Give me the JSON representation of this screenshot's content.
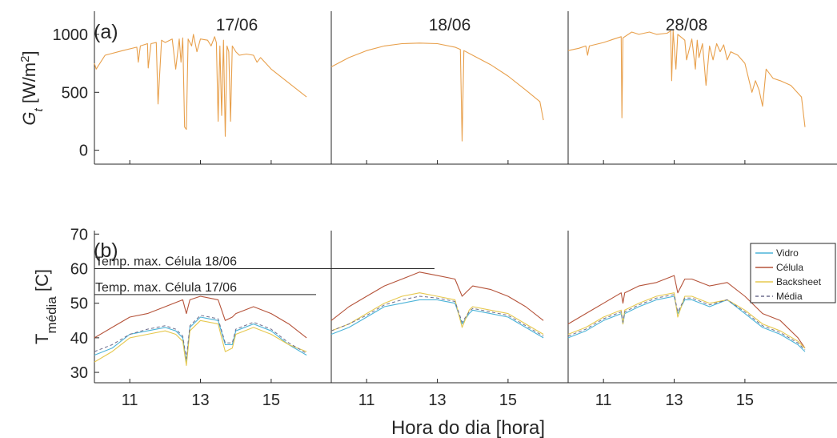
{
  "figure": {
    "xlabel": "Hora do dia [hora]",
    "x_tick_labels": [
      "11",
      "13",
      "15"
    ]
  },
  "colors": {
    "irradiance": "#e8a04c",
    "vidro": "#4bb3d8",
    "celula": "#b5533a",
    "backsheet": "#e6c84e",
    "media": "#6e6e8e",
    "axis": "#262626"
  },
  "chart_data": [
    {
      "type": "line",
      "panel_label": "(a)",
      "ylabel": "G_t [W/m²]",
      "ylabel_base": "G",
      "ylabel_sub": "t",
      "ylabel_unit_pre": " [W/m",
      "ylabel_unit_sup": "2",
      "ylabel_unit_post": "]",
      "ylim": [
        -120,
        1200
      ],
      "yticks": [
        0,
        500,
        1000
      ],
      "xlim": [
        10,
        16.7
      ],
      "days": [
        "17/06",
        "18/06",
        "28/08"
      ],
      "series": [
        {
          "day": "17/06",
          "x": [
            10.0,
            10.05,
            10.3,
            10.8,
            11.2,
            11.24,
            11.3,
            11.5,
            11.52,
            11.6,
            11.75,
            11.8,
            11.9,
            12.0,
            12.2,
            12.3,
            12.4,
            12.45,
            12.5,
            12.55,
            12.6,
            12.65,
            12.75,
            12.8,
            12.9,
            13.0,
            13.2,
            13.3,
            13.4,
            13.45,
            13.5,
            13.55,
            13.6,
            13.65,
            13.7,
            13.75,
            13.8,
            13.85,
            13.9,
            14.0,
            14.1,
            14.3,
            14.5,
            14.6,
            14.7,
            15.0,
            15.5,
            16.0
          ],
          "y": [
            750,
            700,
            820,
            860,
            890,
            760,
            900,
            920,
            710,
            920,
            930,
            400,
            950,
            930,
            960,
            700,
            960,
            760,
            970,
            200,
            180,
            960,
            900,
            1000,
            850,
            960,
            950,
            900,
            980,
            930,
            250,
            900,
            300,
            950,
            120,
            900,
            850,
            250,
            900,
            850,
            820,
            830,
            820,
            760,
            800,
            700,
            580,
            460
          ]
        },
        {
          "day": "18/06",
          "x": [
            10.0,
            10.5,
            11.0,
            11.5,
            12.0,
            12.5,
            13.0,
            13.5,
            13.65,
            13.7,
            13.75,
            14.0,
            14.5,
            15.0,
            15.5,
            15.9,
            16.0
          ],
          "y": [
            720,
            800,
            860,
            900,
            920,
            925,
            920,
            890,
            870,
            80,
            860,
            820,
            740,
            640,
            520,
            420,
            260
          ]
        },
        {
          "day": "28/08",
          "x": [
            10.0,
            10.3,
            10.5,
            10.55,
            10.6,
            11.0,
            11.3,
            11.5,
            11.52,
            11.55,
            11.8,
            12.0,
            12.3,
            12.5,
            12.8,
            12.9,
            12.93,
            12.97,
            13.05,
            13.1,
            13.3,
            13.35,
            13.5,
            13.6,
            13.65,
            13.7,
            13.8,
            13.9,
            14.0,
            14.1,
            14.2,
            14.3,
            14.4,
            14.5,
            14.6,
            14.8,
            15.0,
            15.2,
            15.3,
            15.4,
            15.5,
            15.6,
            15.8,
            16.0,
            16.3,
            16.6,
            16.7
          ],
          "y": [
            860,
            880,
            900,
            820,
            900,
            930,
            960,
            980,
            280,
            970,
            1020,
            1000,
            1020,
            1000,
            1010,
            1030,
            600,
            1030,
            700,
            1000,
            950,
            780,
            960,
            700,
            950,
            800,
            920,
            560,
            900,
            780,
            920,
            850,
            910,
            780,
            850,
            820,
            750,
            500,
            600,
            520,
            380,
            700,
            620,
            600,
            560,
            460,
            200
          ]
        }
      ]
    },
    {
      "type": "line",
      "panel_label": "(b)",
      "ylabel": "T_média [C]",
      "ylabel_base": "T",
      "ylabel_sub": "média",
      "ylabel_unit": " [C]",
      "ylim": [
        27,
        71
      ],
      "yticks": [
        30,
        40,
        50,
        60,
        70
      ],
      "xlim": [
        10,
        16.7
      ],
      "legend_position": "top-right",
      "legend": [
        "Vidro",
        "Célula",
        "Backsheet",
        "Média"
      ],
      "annotations": [
        {
          "text": "Temp. max. Célula 18/06",
          "y": 60
        },
        {
          "text": "Temp. max. Célula 17/06",
          "y": 52.5
        }
      ],
      "series": [
        {
          "name": "Vidro",
          "day": "17/06",
          "x": [
            10.0,
            10.5,
            11.0,
            11.5,
            12.0,
            12.3,
            12.5,
            12.6,
            12.7,
            13.0,
            13.5,
            13.7,
            13.9,
            14.0,
            14.5,
            15.0,
            15.5,
            16.0
          ],
          "y": [
            35,
            37,
            41,
            42,
            43,
            42,
            40,
            33,
            43,
            46,
            45,
            38,
            38,
            42,
            44,
            42,
            38,
            35
          ]
        },
        {
          "name": "Célula",
          "day": "17/06",
          "x": [
            10.0,
            10.5,
            11.0,
            11.5,
            12.0,
            12.5,
            12.6,
            12.7,
            13.0,
            13.5,
            13.7,
            13.9,
            14.0,
            14.5,
            15.0,
            15.5,
            16.0
          ],
          "y": [
            40,
            43,
            46,
            47,
            49,
            51,
            47,
            51,
            52,
            51,
            45,
            46,
            47,
            49,
            47,
            44,
            40
          ]
        },
        {
          "name": "Backsheet",
          "day": "17/06",
          "x": [
            10.0,
            10.5,
            11.0,
            11.5,
            12.0,
            12.3,
            12.5,
            12.6,
            12.7,
            13.0,
            13.5,
            13.7,
            13.9,
            14.0,
            14.5,
            15.0,
            15.5,
            16.0
          ],
          "y": [
            33,
            36,
            40,
            41,
            42,
            41,
            39,
            32,
            42,
            45,
            44,
            36,
            37,
            41,
            43,
            41,
            38,
            36
          ]
        },
        {
          "name": "Média",
          "day": "17/06",
          "x": [
            10.0,
            10.5,
            11.0,
            11.5,
            12.0,
            12.3,
            12.5,
            12.6,
            12.7,
            13.0,
            13.5,
            13.7,
            13.9,
            14.0,
            14.5,
            15.0,
            15.5,
            16.0
          ],
          "y": [
            36,
            38,
            41,
            42.5,
            43.5,
            42.5,
            40.5,
            34,
            43.5,
            46.5,
            45.5,
            38.5,
            38.5,
            42.5,
            44.5,
            42.5,
            38.5,
            35.5
          ]
        },
        {
          "name": "Vidro",
          "day": "18/06",
          "x": [
            10.0,
            10.5,
            11.0,
            11.5,
            12.0,
            12.5,
            13.0,
            13.5,
            13.7,
            13.9,
            14.0,
            14.5,
            15.0,
            15.5,
            16.0
          ],
          "y": [
            41,
            43,
            46,
            49,
            50,
            51,
            51,
            50,
            44,
            47,
            48,
            47,
            46,
            43,
            40
          ]
        },
        {
          "name": "Célula",
          "day": "18/06",
          "x": [
            10.0,
            10.5,
            11.0,
            11.5,
            12.0,
            12.5,
            13.0,
            13.5,
            13.7,
            13.9,
            14.0,
            14.5,
            15.0,
            15.5,
            16.0
          ],
          "y": [
            45,
            49,
            52,
            55,
            57,
            59,
            58,
            57,
            52,
            54,
            55,
            54,
            52,
            49,
            45
          ]
        },
        {
          "name": "Backsheet",
          "day": "18/06",
          "x": [
            10.0,
            10.5,
            11.0,
            11.5,
            12.0,
            12.5,
            13.0,
            13.5,
            13.7,
            13.9,
            14.0,
            14.5,
            15.0,
            15.5,
            16.0
          ],
          "y": [
            42,
            44,
            47,
            50,
            52,
            53,
            52,
            51,
            43,
            48,
            49,
            48,
            47,
            44,
            41
          ]
        },
        {
          "name": "Média",
          "day": "18/06",
          "x": [
            10.0,
            10.5,
            11.0,
            11.5,
            12.0,
            12.5,
            13.0,
            13.5,
            13.7,
            13.9,
            14.0,
            14.5,
            15.0,
            15.5,
            16.0
          ],
          "y": [
            42,
            44,
            46.5,
            49.5,
            51,
            52,
            51.5,
            50.5,
            44.5,
            47.5,
            48.5,
            47.5,
            46.5,
            43.5,
            40.5
          ]
        },
        {
          "name": "Vidro",
          "day": "28/08",
          "x": [
            10.0,
            10.5,
            11.0,
            11.5,
            11.55,
            11.6,
            12.0,
            12.5,
            13.0,
            13.1,
            13.3,
            13.5,
            14.0,
            14.5,
            15.0,
            15.5,
            16.0,
            16.5,
            16.7
          ],
          "y": [
            40,
            42,
            45,
            47,
            44,
            47,
            49,
            51,
            52,
            47,
            51,
            51,
            49,
            51,
            47,
            43,
            41,
            38,
            36
          ]
        },
        {
          "name": "Célula",
          "day": "28/08",
          "x": [
            10.0,
            10.5,
            11.0,
            11.5,
            11.55,
            11.6,
            12.0,
            12.5,
            13.0,
            13.1,
            13.3,
            13.5,
            14.0,
            14.5,
            15.0,
            15.5,
            16.0,
            16.5,
            16.7
          ],
          "y": [
            44,
            47,
            50,
            53,
            50,
            53,
            55,
            56,
            58,
            53,
            57,
            57,
            55,
            56,
            52,
            47,
            45,
            40,
            37
          ]
        },
        {
          "name": "Backsheet",
          "day": "28/08",
          "x": [
            10.0,
            10.5,
            11.0,
            11.5,
            11.55,
            11.6,
            12.0,
            12.5,
            13.0,
            13.1,
            13.3,
            13.5,
            14.0,
            14.5,
            15.0,
            15.5,
            16.0,
            16.5,
            16.7
          ],
          "y": [
            41,
            43,
            46,
            48,
            44,
            48,
            50,
            52,
            53,
            46,
            52,
            52,
            50,
            51,
            48,
            44,
            42,
            39,
            37
          ]
        },
        {
          "name": "Média",
          "day": "28/08",
          "x": [
            10.0,
            10.5,
            11.0,
            11.5,
            11.55,
            11.6,
            12.0,
            12.5,
            13.0,
            13.1,
            13.3,
            13.5,
            14.0,
            14.5,
            15.0,
            15.5,
            16.0,
            16.5,
            16.7
          ],
          "y": [
            40.5,
            42.5,
            45.5,
            47.5,
            44.5,
            47.5,
            49.5,
            51.5,
            52.5,
            47.5,
            51.5,
            51.5,
            49.5,
            51,
            47.5,
            43.5,
            41.5,
            38.5,
            36.5
          ]
        }
      ]
    }
  ]
}
